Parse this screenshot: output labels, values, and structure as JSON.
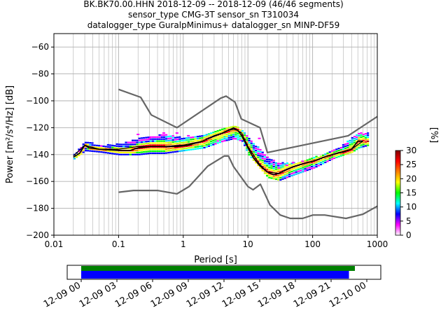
{
  "chart_data": {
    "type": "scatter",
    "title_lines": [
      "BK.BK70.00.HHN   2018-12-09 -- 2018-12-09  (46/46 segments)",
      "sensor_type CMG-3T sensor_sn T310034",
      "datalogger_type GuralpMinimus+ datalogger_sn MINP-DF59"
    ],
    "xlabel": "Period [s]",
    "ylabel": "Power [m²/s⁴/Hz] [dB]",
    "x_scale": "log",
    "xlim": [
      0.01,
      1000
    ],
    "ylim": [
      -200,
      -50
    ],
    "x_ticks": [
      0.01,
      0.1,
      1,
      10,
      100,
      1000
    ],
    "x_tick_labels": [
      "0.01",
      "0.1",
      "1",
      "10",
      "100",
      "1000"
    ],
    "y_ticks": [
      -200,
      -180,
      -160,
      -140,
      -120,
      -100,
      -80,
      -60
    ],
    "y_tick_labels": [
      "−200",
      "−180",
      "−160",
      "−140",
      "−120",
      "−100",
      "−80",
      "−60"
    ],
    "grid": true,
    "colorbar": {
      "label": "[%]",
      "range": [
        0,
        30
      ],
      "ticks": [
        0,
        5,
        10,
        15,
        20,
        25,
        30
      ],
      "tick_labels": [
        "0",
        "5",
        "10",
        "15",
        "20",
        "25",
        "30"
      ],
      "colors": [
        "#ffffff",
        "#ff00ff",
        "#0000ff",
        "#00ffff",
        "#00ff00",
        "#ffff00",
        "#ff8000",
        "#ff0000",
        "#800000"
      ]
    },
    "noise_models": {
      "color": "#666666",
      "nhnm": [
        [
          0.1,
          -91.5
        ],
        [
          0.22,
          -97.4
        ],
        [
          0.32,
          -110.5
        ],
        [
          0.8,
          -120
        ],
        [
          3.8,
          -98
        ],
        [
          4.6,
          -96.5
        ],
        [
          6.3,
          -101
        ],
        [
          7.9,
          -113.5
        ],
        [
          15.4,
          -120
        ],
        [
          20,
          -138.5
        ],
        [
          354.8,
          -126
        ],
        [
          10000,
          -80
        ]
      ],
      "nlnm": [
        [
          0.1,
          -168
        ],
        [
          0.17,
          -166.7
        ],
        [
          0.4,
          -166.7
        ],
        [
          0.8,
          -169.2
        ],
        [
          1.24,
          -163.7
        ],
        [
          2.4,
          -148.6
        ],
        [
          4.3,
          -141.1
        ],
        [
          5,
          -141.1
        ],
        [
          6,
          -149
        ],
        [
          10,
          -163.8
        ],
        [
          12,
          -166.2
        ],
        [
          15.6,
          -162.1
        ],
        [
          21.9,
          -177.5
        ],
        [
          31.6,
          -185
        ],
        [
          45,
          -187.5
        ],
        [
          70,
          -187.5
        ],
        [
          101,
          -185
        ],
        [
          154,
          -185
        ],
        [
          328,
          -187.5
        ],
        [
          600,
          -184.4
        ],
        [
          10000,
          -151.5
        ]
      ]
    },
    "mean_curve": {
      "color": "#000000",
      "x": [
        0.02,
        0.025,
        0.03,
        0.035,
        0.05,
        0.07,
        0.1,
        0.15,
        0.2,
        0.3,
        0.5,
        0.8,
        1.2,
        2,
        3,
        4,
        5,
        6,
        7,
        8,
        10,
        12,
        15,
        20,
        25,
        30,
        40,
        50,
        70,
        100,
        150,
        200,
        300,
        400,
        500,
        600
      ],
      "y": [
        -142,
        -139,
        -133,
        -135,
        -136,
        -136.5,
        -137,
        -137,
        -135,
        -134,
        -134,
        -134,
        -133,
        -130,
        -126,
        -124,
        -122,
        -121,
        -122,
        -126,
        -135,
        -142,
        -148,
        -153,
        -155,
        -154,
        -151,
        -149,
        -147,
        -145,
        -142,
        -140,
        -138,
        -136,
        -130,
        -130
      ]
    },
    "mode_curve": {
      "color": "#000000",
      "x": [
        0.02,
        0.03,
        0.05,
        0.1,
        0.2,
        0.5,
        1,
        2,
        4,
        6,
        8,
        10,
        15,
        20,
        30,
        50,
        100,
        200,
        400,
        600
      ],
      "y": [
        -141,
        -133,
        -136,
        -136,
        -134,
        -134,
        -133,
        -130,
        -124,
        -120,
        -124,
        -134,
        -147,
        -153,
        -154,
        -149,
        -145,
        -140,
        -136,
        -130
      ]
    },
    "psd_spread": {
      "x": [
        0.02,
        0.03,
        0.05,
        0.1,
        0.2,
        0.3,
        0.5,
        1,
        2,
        4,
        6,
        8,
        10,
        15,
        20,
        30,
        50,
        100,
        200,
        300,
        400,
        500,
        700
      ],
      "upper": [
        -140,
        -130,
        -133,
        -132,
        -128,
        -126,
        -125,
        -127,
        -125,
        -120,
        -118,
        -122,
        -128,
        -136,
        -143,
        -146,
        -146,
        -142,
        -137,
        -132,
        -127,
        -124,
        -124
      ],
      "lower": [
        -143,
        -137,
        -138,
        -140,
        -140,
        -139,
        -139,
        -137,
        -135,
        -130,
        -128,
        -130,
        -140,
        -150,
        -157,
        -159,
        -155,
        -150,
        -143,
        -140,
        -138,
        -135,
        -133
      ]
    },
    "outliers_magenta": {
      "x": [
        0.2,
        0.3,
        0.5,
        0.8,
        1.2,
        15,
        20,
        30,
        40,
        50,
        70
      ],
      "y": [
        -125,
        -128,
        -124,
        -124,
        -126,
        -128,
        -142,
        -150,
        -148,
        -146,
        -145
      ]
    }
  },
  "availability": {
    "tick_labels": [
      "12-09 00",
      "12-09 03",
      "12-09 06",
      "12-09 09",
      "12-09 12",
      "12-09 15",
      "12-09 18",
      "12-09 21",
      "12-10 00"
    ],
    "green_bar": [
      0.0,
      0.9583
    ],
    "blue_bar": [
      0.0,
      0.9375
    ],
    "green_color": "#008000",
    "blue_color": "#0000ff"
  }
}
